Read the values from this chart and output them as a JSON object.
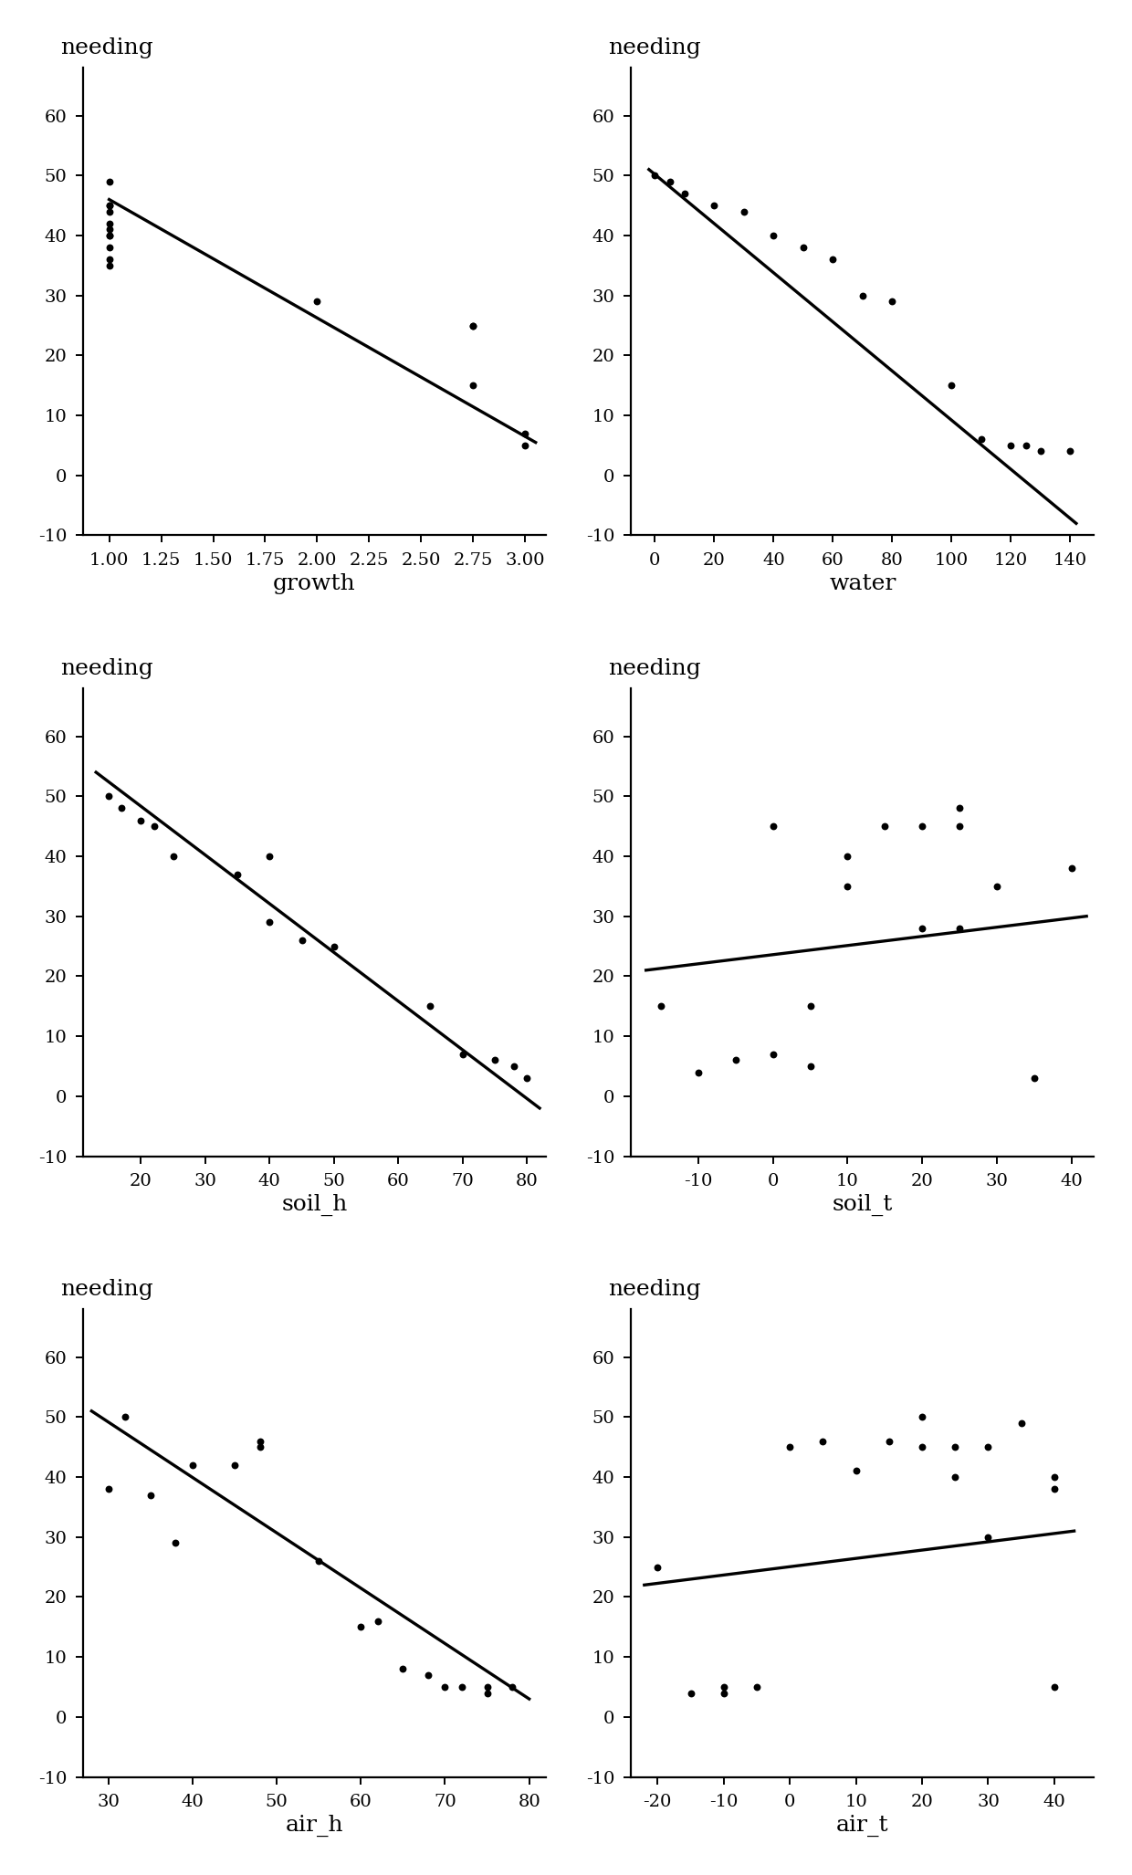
{
  "subplots": [
    {
      "xlabel": "growth",
      "ylabel": "needing",
      "scatter_x": [
        1.0,
        1.0,
        1.0,
        1.0,
        1.0,
        1.0,
        1.0,
        1.0,
        1.0,
        1.0,
        1.0,
        2.0,
        2.75,
        2.75,
        2.75,
        3.0,
        3.0
      ],
      "scatter_y": [
        49,
        45,
        45,
        44,
        42,
        41,
        40,
        40,
        38,
        36,
        35,
        29,
        25,
        25,
        15,
        7,
        5
      ],
      "line_x": [
        1.0,
        3.05
      ],
      "line_y": [
        46.0,
        5.5
      ],
      "xlim": [
        0.875,
        3.1
      ],
      "ylim": [
        -10,
        68
      ],
      "xticks": [
        1.0,
        1.25,
        1.5,
        1.75,
        2.0,
        2.25,
        2.5,
        2.75,
        3.0
      ],
      "yticks": [
        -10,
        0,
        10,
        20,
        30,
        40,
        50,
        60
      ],
      "xticklabels": [
        "1.00",
        "1.25",
        "1.50",
        "1.75",
        "2.00",
        "2.25",
        "2.50",
        "2.75",
        "3.00"
      ]
    },
    {
      "xlabel": "water",
      "ylabel": "needing",
      "scatter_x": [
        0,
        5,
        10,
        20,
        30,
        40,
        50,
        60,
        70,
        80,
        100,
        110,
        120,
        125,
        130,
        140
      ],
      "scatter_y": [
        50,
        49,
        47,
        45,
        44,
        40,
        38,
        36,
        30,
        29,
        15,
        6,
        5,
        5,
        4,
        4
      ],
      "line_x": [
        -2,
        142
      ],
      "line_y": [
        51,
        -8
      ],
      "xlim": [
        -8,
        148
      ],
      "ylim": [
        -10,
        68
      ],
      "xticks": [
        0,
        20,
        40,
        60,
        80,
        100,
        120,
        140
      ],
      "yticks": [
        -10,
        0,
        10,
        20,
        30,
        40,
        50,
        60
      ],
      "xticklabels": [
        "0",
        "20",
        "40",
        "60",
        "80",
        "100",
        "120",
        "140"
      ]
    },
    {
      "xlabel": "soil_h",
      "ylabel": "needing",
      "scatter_x": [
        15,
        17,
        20,
        22,
        25,
        35,
        40,
        40,
        45,
        50,
        65,
        70,
        75,
        78,
        80
      ],
      "scatter_y": [
        50,
        48,
        46,
        45,
        40,
        37,
        40,
        29,
        26,
        25,
        15,
        7,
        6,
        5,
        3
      ],
      "line_x": [
        13,
        82
      ],
      "line_y": [
        54,
        -2
      ],
      "xlim": [
        11,
        83
      ],
      "ylim": [
        -10,
        68
      ],
      "xticks": [
        20,
        30,
        40,
        50,
        60,
        70,
        80
      ],
      "yticks": [
        -10,
        0,
        10,
        20,
        30,
        40,
        50,
        60
      ],
      "xticklabels": [
        "20",
        "30",
        "40",
        "50",
        "60",
        "70",
        "80"
      ]
    },
    {
      "xlabel": "soil_t",
      "ylabel": "needing",
      "scatter_x": [
        -15,
        -10,
        -5,
        0,
        0,
        5,
        5,
        10,
        10,
        15,
        20,
        20,
        25,
        25,
        25,
        30,
        35,
        40
      ],
      "scatter_y": [
        15,
        4,
        6,
        45,
        7,
        5,
        15,
        35,
        40,
        45,
        45,
        28,
        28,
        45,
        48,
        35,
        3,
        38
      ],
      "line_x": [
        -17,
        42
      ],
      "line_y": [
        21,
        30
      ],
      "xlim": [
        -19,
        43
      ],
      "ylim": [
        -10,
        68
      ],
      "xticks": [
        -10,
        0,
        10,
        20,
        30,
        40
      ],
      "yticks": [
        -10,
        0,
        10,
        20,
        30,
        40,
        50,
        60
      ],
      "xticklabels": [
        "-10",
        "0",
        "10",
        "20",
        "30",
        "40"
      ]
    },
    {
      "xlabel": "air_h",
      "ylabel": "needing",
      "scatter_x": [
        30,
        32,
        35,
        38,
        40,
        45,
        48,
        48,
        55,
        60,
        62,
        65,
        68,
        70,
        72,
        75,
        75,
        78
      ],
      "scatter_y": [
        38,
        50,
        37,
        29,
        42,
        42,
        46,
        45,
        26,
        15,
        16,
        8,
        7,
        5,
        5,
        4,
        5,
        5
      ],
      "line_x": [
        28,
        80
      ],
      "line_y": [
        51,
        3
      ],
      "xlim": [
        27,
        82
      ],
      "ylim": [
        -10,
        68
      ],
      "xticks": [
        30,
        40,
        50,
        60,
        70,
        80
      ],
      "yticks": [
        -10,
        0,
        10,
        20,
        30,
        40,
        50,
        60
      ],
      "xticklabels": [
        "30",
        "40",
        "50",
        "60",
        "70",
        "80"
      ]
    },
    {
      "xlabel": "air_t",
      "ylabel": "needing",
      "scatter_x": [
        -20,
        -15,
        -10,
        -10,
        -5,
        0,
        5,
        10,
        15,
        20,
        20,
        25,
        25,
        30,
        30,
        35,
        40,
        40,
        40
      ],
      "scatter_y": [
        25,
        4,
        4,
        5,
        5,
        45,
        46,
        41,
        46,
        45,
        50,
        45,
        40,
        30,
        45,
        49,
        5,
        40,
        38
      ],
      "line_x": [
        -22,
        43
      ],
      "line_y": [
        22,
        31
      ],
      "xlim": [
        -24,
        46
      ],
      "ylim": [
        -10,
        68
      ],
      "xticks": [
        -20,
        -10,
        0,
        10,
        20,
        30,
        40
      ],
      "yticks": [
        -10,
        0,
        10,
        20,
        30,
        40,
        50,
        60
      ],
      "xticklabels": [
        "-20",
        "-10",
        "0",
        "10",
        "20",
        "30",
        "40"
      ]
    }
  ],
  "background_color": "#ffffff",
  "scatter_color": "#000000",
  "line_color": "#000000",
  "figsize": [
    6.2,
    10.27
  ],
  "dpi": 200
}
